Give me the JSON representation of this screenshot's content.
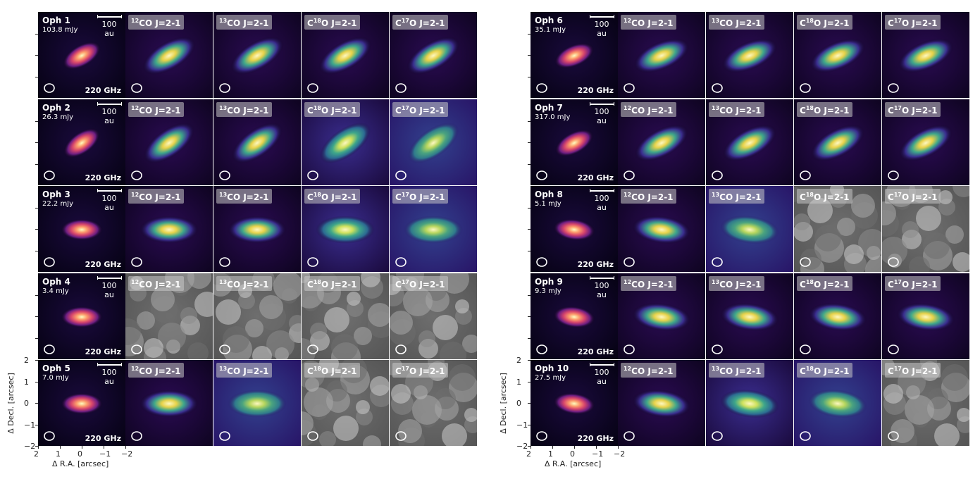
{
  "panels": [
    {
      "sources": [
        {
          "name": "Oph 1",
          "flux": "103.8 mJy",
          "maps": [
            "0",
            "1",
            "1",
            "1",
            "1"
          ]
        },
        {
          "name": "Oph 2",
          "flux": "26.3 mJy",
          "maps": [
            "0",
            "1",
            "1",
            "2",
            "3"
          ]
        },
        {
          "name": "Oph 3",
          "flux": "22.2 mJy",
          "maps": [
            "0",
            "1",
            "1",
            "2",
            "3"
          ]
        },
        {
          "name": "Oph 4",
          "flux": "3.4 mJy",
          "maps": [
            "0",
            "g",
            "g",
            "g",
            "g"
          ]
        },
        {
          "name": "Oph 5",
          "flux": "7.0 mJy",
          "maps": [
            "0",
            "1",
            "3",
            "g",
            "g"
          ]
        }
      ]
    },
    {
      "sources": [
        {
          "name": "Oph 6",
          "flux": "35.1 mJy",
          "maps": [
            "0",
            "1",
            "1",
            "1",
            "1"
          ]
        },
        {
          "name": "Oph 7",
          "flux": "317.0 mJy",
          "maps": [
            "0",
            "1",
            "1",
            "1",
            "1"
          ]
        },
        {
          "name": "Oph 8",
          "flux": "5.1 mJy",
          "maps": [
            "0",
            "1",
            "3",
            "g",
            "g"
          ]
        },
        {
          "name": "Oph 9",
          "flux": "9.3 mJy",
          "maps": [
            "0",
            "1",
            "1",
            "1",
            "1"
          ]
        },
        {
          "name": "Oph 10",
          "flux": "27.5 mJy",
          "maps": [
            "0",
            "1",
            "2",
            "3",
            "g"
          ]
        }
      ]
    }
  ],
  "lines": [
    "CO J=2-1",
    "CO J=2-1",
    "O J=2-1",
    "O J=2-1"
  ],
  "line_sup": [
    "12",
    "13",
    "18",
    "17"
  ],
  "line_prefix": [
    "",
    "",
    "C",
    "C"
  ],
  "scale_label": "100 au",
  "freq_label": "220 GHz",
  "axes": {
    "xlabel": "Δ R.A. [arcsec]",
    "ylabel": "Δ Decl. [arcsec]",
    "xticks": [
      "2",
      "1",
      "0",
      "−1",
      "−2"
    ],
    "yticks": [
      "2",
      "1",
      "0",
      "−1",
      "−2"
    ]
  }
}
